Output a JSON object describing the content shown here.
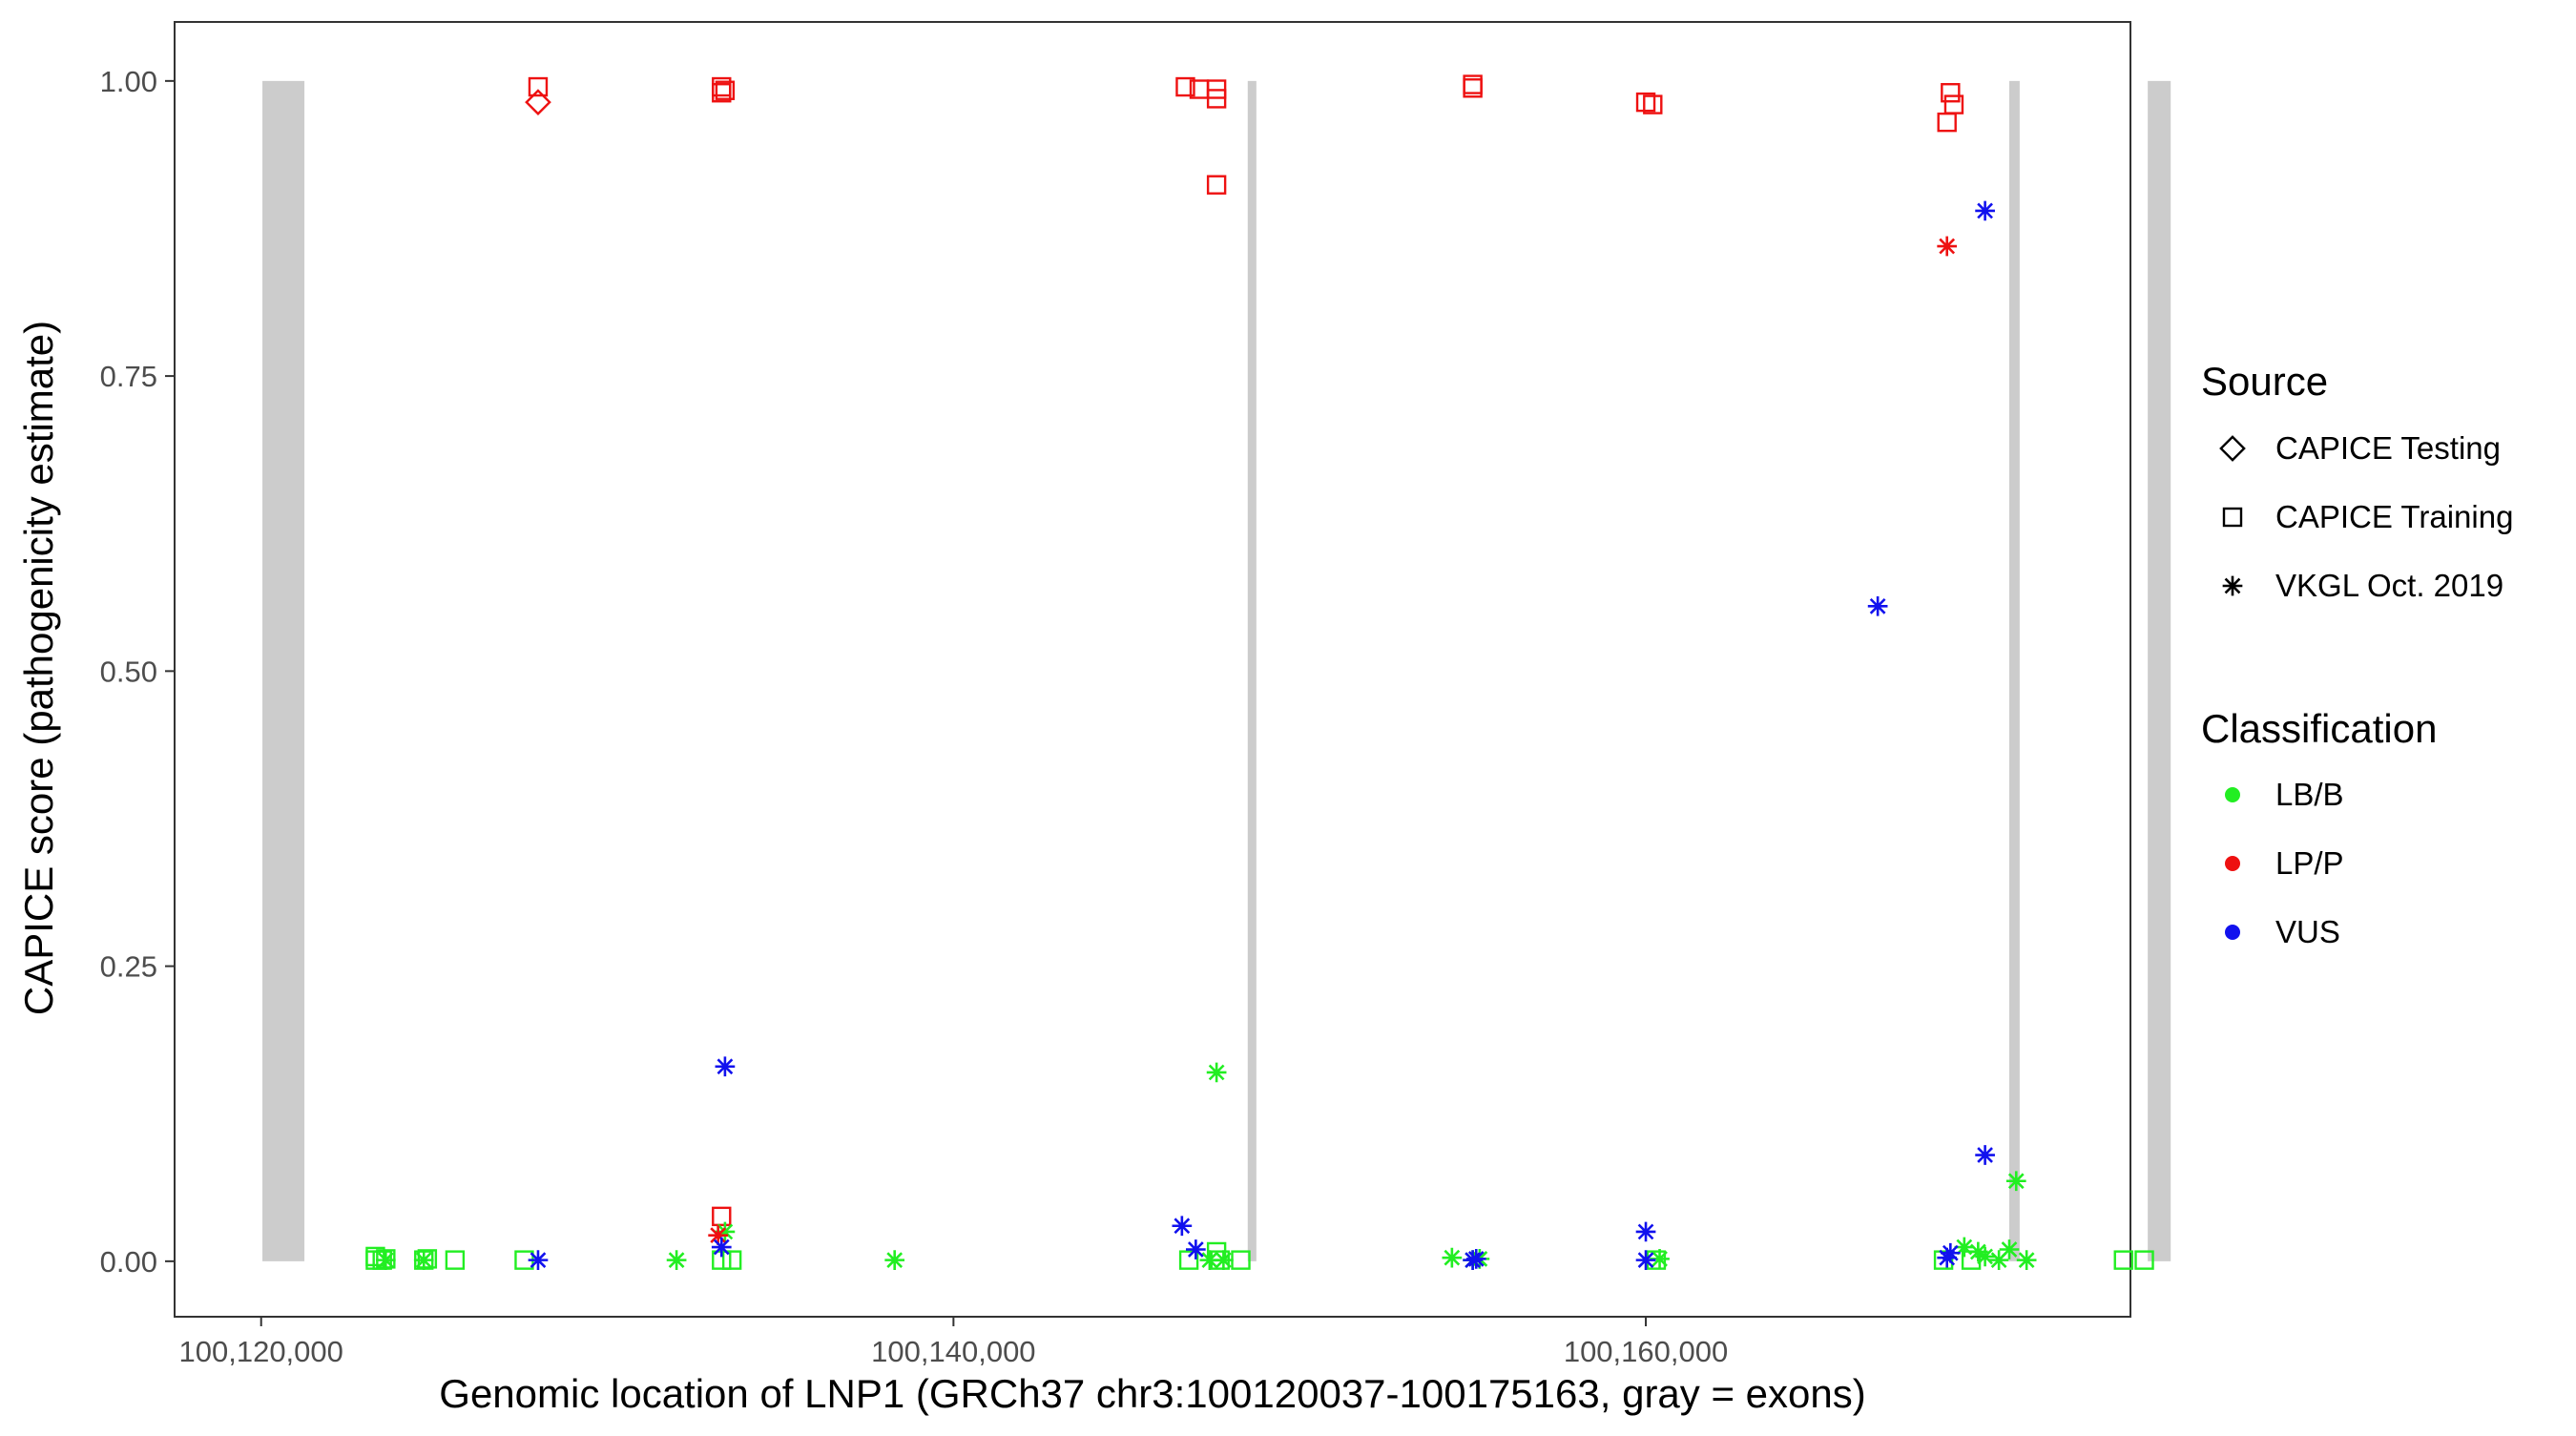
{
  "chart_data": {
    "type": "scatter",
    "title": "",
    "xlabel": "Genomic location of LNP1 (GRCh37 chr3:100120037-100175163, gray = exons)",
    "ylabel": "CAPICE score (pathogenicity estimate)",
    "xlim": [
      100117500,
      100174000
    ],
    "ylim": [
      -0.047,
      1.05
    ],
    "x_ticks": [
      100120000,
      100140000,
      100160000
    ],
    "x_tick_labels": [
      "100,120,000",
      "100,140,000",
      "100,160,000"
    ],
    "y_ticks": [
      0,
      0.25,
      0.5,
      0.75,
      1
    ],
    "y_tick_labels": [
      "0.00",
      "0.25",
      "0.50",
      "0.75",
      "1.00"
    ],
    "grid": false,
    "exons": [
      {
        "start": 100120037,
        "end": 100121250
      },
      {
        "start": 100148500,
        "end": 100148750
      },
      {
        "start": 100170500,
        "end": 100170800
      },
      {
        "start": 100174500,
        "end": 100175163
      }
    ],
    "legend": {
      "placement": "right",
      "source_title": "Source",
      "source_entries": [
        {
          "label": "CAPICE Testing",
          "shape": "diamond"
        },
        {
          "label": "CAPICE Training",
          "shape": "square"
        },
        {
          "label": "VKGL Oct. 2019",
          "shape": "asterisk"
        }
      ],
      "class_title": "Classification",
      "class_entries": [
        {
          "label": "LB/B",
          "color": "#22ee22"
        },
        {
          "label": "LP/P",
          "color": "#ee1111"
        },
        {
          "label": "VUS",
          "color": "#1111ee"
        }
      ]
    },
    "colors": {
      "LB/B": "#22ee22",
      "LP/P": "#ee1111",
      "VUS": "#1111ee",
      "exon": "#cccccc"
    },
    "series": [
      {
        "source": "CAPICE Testing",
        "classification": "LP/P",
        "points": [
          [
            100128000,
            0.982
          ]
        ]
      },
      {
        "source": "CAPICE Training",
        "classification": "LP/P",
        "points": [
          [
            100128000,
            0.995
          ],
          [
            100133300,
            0.995
          ],
          [
            100133400,
            0.992
          ],
          [
            100133300,
            0.99
          ],
          [
            100146700,
            0.995
          ],
          [
            100147100,
            0.993
          ],
          [
            100147600,
            0.993
          ],
          [
            100147600,
            0.985
          ],
          [
            100147600,
            0.912
          ],
          [
            100155000,
            0.997
          ],
          [
            100155000,
            0.994
          ],
          [
            100160000,
            0.982
          ],
          [
            100160200,
            0.98
          ],
          [
            100168800,
            0.99
          ],
          [
            100168900,
            0.98
          ],
          [
            100168700,
            0.965
          ],
          [
            100133300,
            0.038
          ]
        ]
      },
      {
        "source": "CAPICE Training",
        "classification": "LB/B",
        "points": [
          [
            100123300,
            0.001
          ],
          [
            100123500,
            0.001
          ],
          [
            100123600,
            0.002
          ],
          [
            100123300,
            0.004
          ],
          [
            100124700,
            0.001
          ],
          [
            100124800,
            0.002
          ],
          [
            100125600,
            0.001
          ],
          [
            100127600,
            0.001
          ],
          [
            100133300,
            0.001
          ],
          [
            100133600,
            0.001
          ],
          [
            100146800,
            0.001
          ],
          [
            100147600,
            0.008
          ],
          [
            100147700,
            0.001
          ],
          [
            100148300,
            0.001
          ],
          [
            100160300,
            0.001
          ],
          [
            100168600,
            0.001
          ],
          [
            100169400,
            0.001
          ],
          [
            100173800,
            0.001
          ],
          [
            100174400,
            0.001
          ]
        ]
      },
      {
        "source": "VKGL Oct. 2019",
        "classification": "LB/B",
        "points": [
          [
            100123600,
            0.001
          ],
          [
            100124700,
            0.001
          ],
          [
            100132000,
            0.001
          ],
          [
            100133400,
            0.025
          ],
          [
            100138300,
            0.001
          ],
          [
            100147600,
            0.16
          ],
          [
            100147400,
            0.001
          ],
          [
            100147800,
            0.001
          ],
          [
            100154400,
            0.003
          ],
          [
            100155000,
            0.001
          ],
          [
            100155200,
            0.002
          ],
          [
            100160400,
            0.002
          ],
          [
            100169200,
            0.012
          ],
          [
            100169600,
            0.008
          ],
          [
            100169800,
            0.004
          ],
          [
            100170200,
            0.001
          ],
          [
            100170500,
            0.01
          ],
          [
            100170700,
            0.068
          ],
          [
            100171000,
            0.001
          ]
        ]
      },
      {
        "source": "VKGL Oct. 2019",
        "classification": "LP/P",
        "points": [
          [
            100133200,
            0.022
          ],
          [
            100168700,
            0.86
          ]
        ]
      },
      {
        "source": "VKGL Oct. 2019",
        "classification": "VUS",
        "points": [
          [
            100128000,
            0.001
          ],
          [
            100133300,
            0.012
          ],
          [
            100133400,
            0.165
          ],
          [
            100146600,
            0.03
          ],
          [
            100147000,
            0.01
          ],
          [
            100155000,
            0.001
          ],
          [
            100155100,
            0.002
          ],
          [
            100160000,
            0.025
          ],
          [
            100160000,
            0.001
          ],
          [
            100166700,
            0.555
          ],
          [
            100168700,
            0.003
          ],
          [
            100168800,
            0.007
          ],
          [
            100169800,
            0.09
          ],
          [
            100169800,
            0.89
          ]
        ]
      }
    ]
  }
}
